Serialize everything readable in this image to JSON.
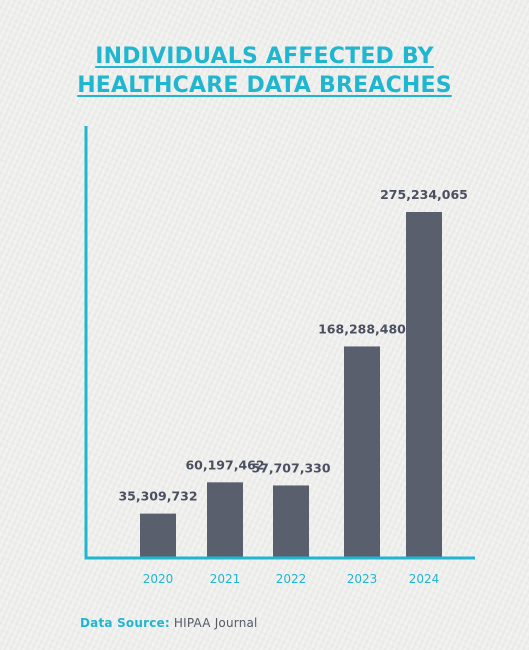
{
  "source": {
    "label": "Data Source:",
    "value": "HIPAA Journal"
  },
  "colors": {
    "accent": "#21b6d0",
    "bar": "#5a5f6d",
    "label": "#4b5060",
    "background": "#eeeeec"
  },
  "chart_data": {
    "type": "bar",
    "title": "INDIVIDUALS AFFECTED BY HEALTHCARE DATA BREACHES",
    "title_lines": [
      "INDIVIDUALS AFFECTED BY",
      "HEALTHCARE DATA BREACHES"
    ],
    "xlabel": "",
    "ylabel": "",
    "categories": [
      "2020",
      "2021",
      "2022",
      "2023",
      "2024"
    ],
    "values": [
      35309732,
      60197462,
      57707330,
      168288480,
      275234065
    ],
    "value_labels": [
      "35,309,732",
      "60,197,462",
      "57,707,330",
      "168,288,480",
      "275,234,065"
    ],
    "ylim": [
      0,
      275234065
    ],
    "grid": false,
    "legend": "none"
  }
}
